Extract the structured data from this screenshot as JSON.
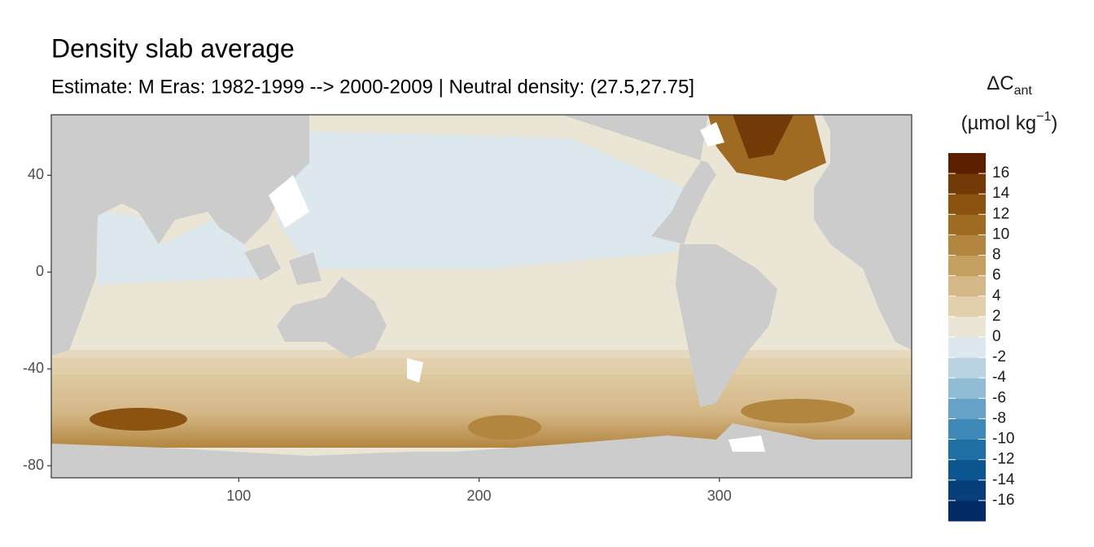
{
  "chart_data": {
    "type": "map",
    "title": "Density slab average",
    "subtitle": "Estimate: M Eras: 1982-1999 --> 2000-2009 | Neutral density: (27.5,27.75]",
    "xlim": [
      22,
      380
    ],
    "ylim": [
      -85,
      65
    ],
    "xticks": [
      100,
      200,
      300
    ],
    "yticks": [
      -80,
      -40,
      0,
      40
    ],
    "legend": {
      "title": "ΔC",
      "title_subscript": "ant",
      "unit": "(µmol kg",
      "unit_superscript": "−1",
      "unit_close": ")",
      "limits": [
        -18,
        18
      ],
      "ticks": [
        16,
        14,
        12,
        10,
        8,
        6,
        4,
        2,
        0,
        -2,
        -4,
        -6,
        -8,
        -10,
        -12,
        -14,
        -16
      ],
      "colors": [
        "#022a65",
        "#063f7a",
        "#0b5690",
        "#1f6fa5",
        "#3f89b9",
        "#67a3c8",
        "#90bcd6",
        "#b9d3e3",
        "#dde8ee",
        "#ebe5d5",
        "#e2d0ad",
        "#d5b888",
        "#c6a061",
        "#b38640",
        "#9f6a22",
        "#8c5210",
        "#733a07",
        "#5c2001"
      ]
    }
  }
}
